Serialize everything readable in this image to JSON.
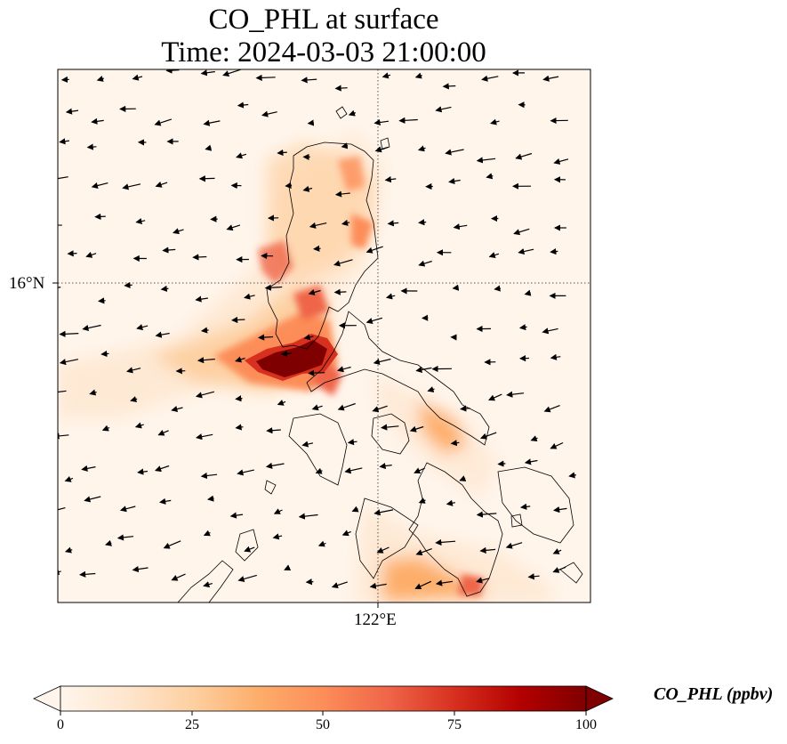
{
  "title": {
    "line1": "CO_PHL at surface",
    "line2": "Time: 2024-03-03 21:00:00"
  },
  "axes": {
    "lat_tick": "16°N",
    "lon_tick": "122°E"
  },
  "colorbar": {
    "label": "CO_PHL (ppbv)",
    "ticks": [
      "0",
      "25",
      "50",
      "75",
      "100"
    ],
    "min": 0,
    "max": 100,
    "extend": "both",
    "colormap": [
      "#fff5eb",
      "#fee6ce",
      "#fdd0a2",
      "#fdae6b",
      "#fd8d3c",
      "#f16913",
      "#d94801",
      "#a63603",
      "#7f2704"
    ]
  },
  "map": {
    "gridlines": "dotted",
    "background_color": "#fff5eb",
    "peak_color": "#7f0000"
  }
}
